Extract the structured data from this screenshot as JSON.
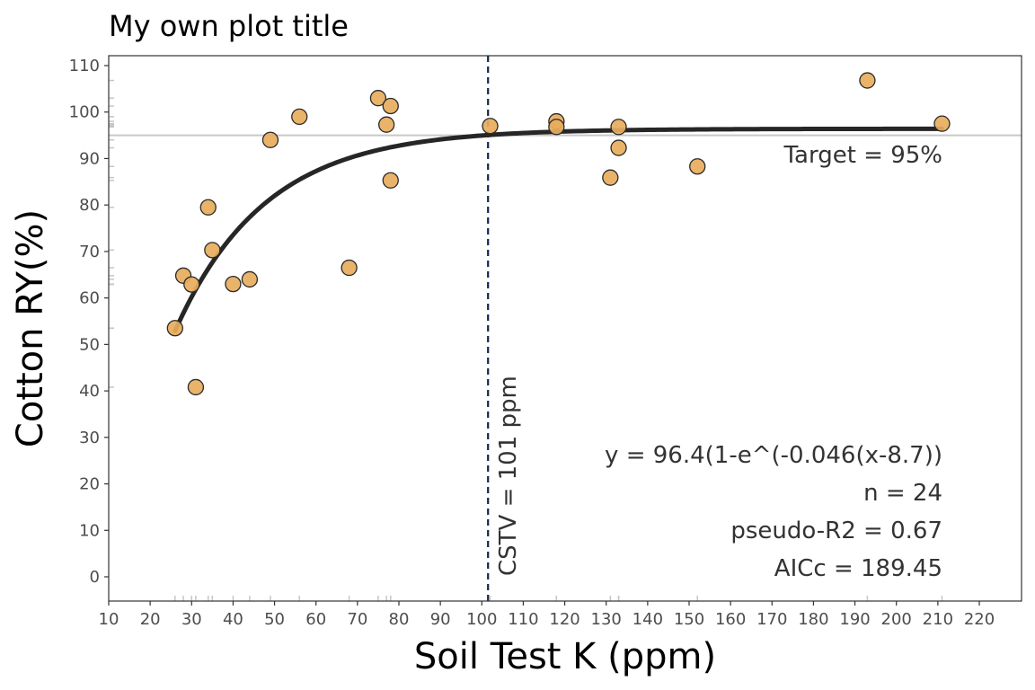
{
  "chart_data": {
    "type": "scatter",
    "title": "My own plot title",
    "xlabel": "Soil Test K (ppm)",
    "ylabel": "Cotton RY(%)",
    "xlim": [
      10,
      220
    ],
    "ylim": [
      -5,
      112
    ],
    "x_ticks": [
      10,
      20,
      30,
      40,
      50,
      60,
      70,
      80,
      90,
      100,
      110,
      120,
      130,
      140,
      150,
      160,
      170,
      180,
      190,
      200,
      210,
      220
    ],
    "y_ticks": [
      0,
      10,
      20,
      30,
      40,
      50,
      60,
      70,
      80,
      90,
      100,
      110
    ],
    "grid": false,
    "points": [
      {
        "x": 26,
        "y": 53.5
      },
      {
        "x": 28,
        "y": 64.8
      },
      {
        "x": 30,
        "y": 62.9
      },
      {
        "x": 31,
        "y": 40.8
      },
      {
        "x": 34,
        "y": 79.5
      },
      {
        "x": 35,
        "y": 70.3
      },
      {
        "x": 40,
        "y": 63.0
      },
      {
        "x": 44,
        "y": 64.0
      },
      {
        "x": 49,
        "y": 94.0
      },
      {
        "x": 56,
        "y": 99.0
      },
      {
        "x": 68,
        "y": 66.5
      },
      {
        "x": 75,
        "y": 103.0
      },
      {
        "x": 77,
        "y": 97.3
      },
      {
        "x": 78,
        "y": 101.3
      },
      {
        "x": 78,
        "y": 85.3
      },
      {
        "x": 102,
        "y": 97.0
      },
      {
        "x": 118,
        "y": 98.0
      },
      {
        "x": 118,
        "y": 96.8
      },
      {
        "x": 131,
        "y": 85.9
      },
      {
        "x": 133,
        "y": 96.8
      },
      {
        "x": 133,
        "y": 92.3
      },
      {
        "x": 152,
        "y": 88.3
      },
      {
        "x": 193,
        "y": 106.8
      },
      {
        "x": 211,
        "y": 97.5
      }
    ],
    "model": {
      "a": 96.4,
      "b": 0.046,
      "c": 8.7,
      "x_from": 26,
      "x_to": 211
    },
    "target": {
      "y": 95,
      "label": "Target = 95%"
    },
    "cstv": {
      "x": 101.5,
      "label": "CSTV = 101 ppm"
    },
    "stats": [
      "y = 96.4(1-e^(-0.046(x-8.7))",
      "n = 24",
      "pseudo-R2 = 0.67",
      "AICc = 189.45"
    ],
    "colors": {
      "point_fill": "#e8ad5d",
      "point_stroke": "#2a2a2a",
      "curve": "#262626",
      "target_line": "#c8c8c8",
      "cstv_line": "#13264f",
      "panel_border": "#333333",
      "rug": "#c6c6c6"
    }
  }
}
